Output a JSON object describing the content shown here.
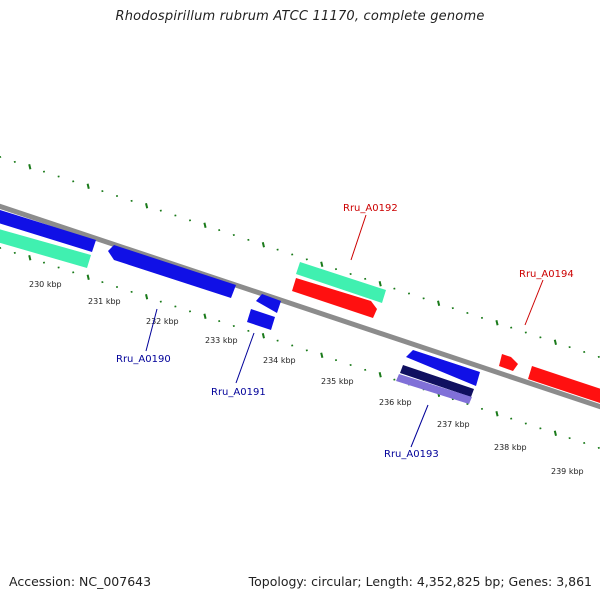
{
  "title": "Rhodospirillum rubrum ATCC 11170, complete genome",
  "footer": {
    "accession": "Accession: NC_007643",
    "summary": "Topology: circular; Length: 4,352,825 bp; Genes: 3,861"
  },
  "colors": {
    "backbone": "#8c8c8c",
    "ticks": "#1a7a1a",
    "forward_cds": "#ff1010",
    "reverse_cds": "#1010e6",
    "rna": "#40f0b0",
    "dark_feature": "#101060",
    "light_feature": "#8070d8",
    "forward_label": "#cc0000",
    "reverse_label": "#000099"
  },
  "ticks": [
    "230 kbp",
    "231 kbp",
    "232 kbp",
    "233 kbp",
    "234 kbp",
    "235 kbp",
    "236 kbp",
    "237 kbp",
    "238 kbp",
    "239 kbp"
  ],
  "genes": [
    {
      "label": "Rru_A0190",
      "strand": "reverse"
    },
    {
      "label": "Rru_A0191",
      "strand": "reverse"
    },
    {
      "label": "Rru_A0192",
      "strand": "forward"
    },
    {
      "label": "Rru_A0193",
      "strand": "reverse"
    },
    {
      "label": "Rru_A0194",
      "strand": "forward"
    }
  ]
}
